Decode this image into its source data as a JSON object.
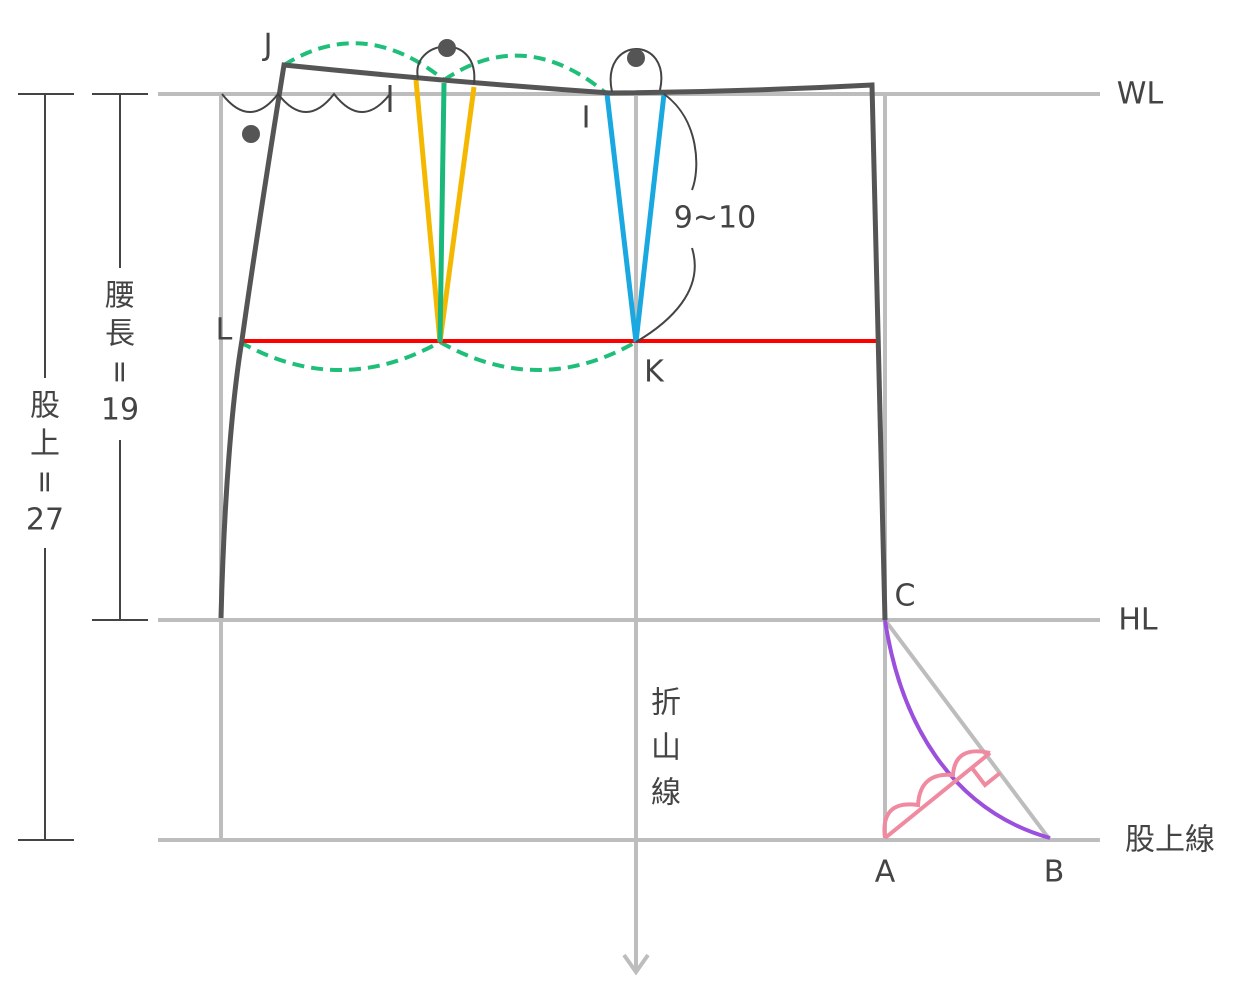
{
  "labels": {
    "J": "J",
    "I": "I",
    "L": "L",
    "K": "K",
    "C": "C",
    "A": "A",
    "B": "B",
    "WL": "WL",
    "HL": "HL",
    "crotch_line": "股上線",
    "dart_length": "9~10",
    "fold_line": [
      "折",
      "山",
      "線"
    ],
    "hip_length": [
      "腰",
      "長",
      "=",
      "19"
    ],
    "crotch_depth": [
      "股",
      "上",
      "=",
      "27"
    ]
  }
}
